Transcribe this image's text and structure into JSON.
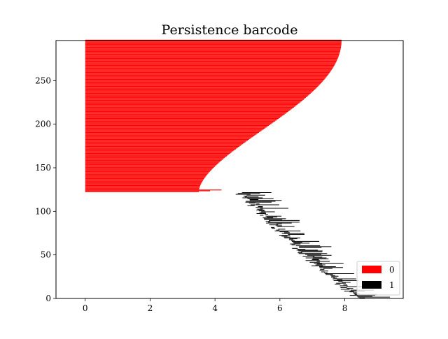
{
  "chart_data": {
    "type": "bar",
    "orientation": "horizontal",
    "title": "Persistence barcode",
    "xlabel": "",
    "ylabel": "",
    "xlim": [
      -0.9,
      9.8
    ],
    "ylim": [
      0,
      296
    ],
    "xticks": [
      0,
      2,
      4,
      6,
      8
    ],
    "yticks": [
      0,
      50,
      100,
      150,
      200,
      250
    ],
    "grid": false,
    "legend_placement": "lower-right",
    "series": [
      {
        "name": "0",
        "color": "#ff0000",
        "bars": [
          {
            "y_start": 122,
            "y_end": 296,
            "birth": 0,
            "death_start": 3.5,
            "death_end": 7.9
          }
        ]
      },
      {
        "name": "1",
        "color": "#000000",
        "bars": [
          {
            "y_start": 0,
            "y_end": 121,
            "birth_start": 8.4,
            "birth_end": 4.75,
            "length_min": 0.1,
            "length_max": 1.0
          }
        ]
      }
    ]
  }
}
